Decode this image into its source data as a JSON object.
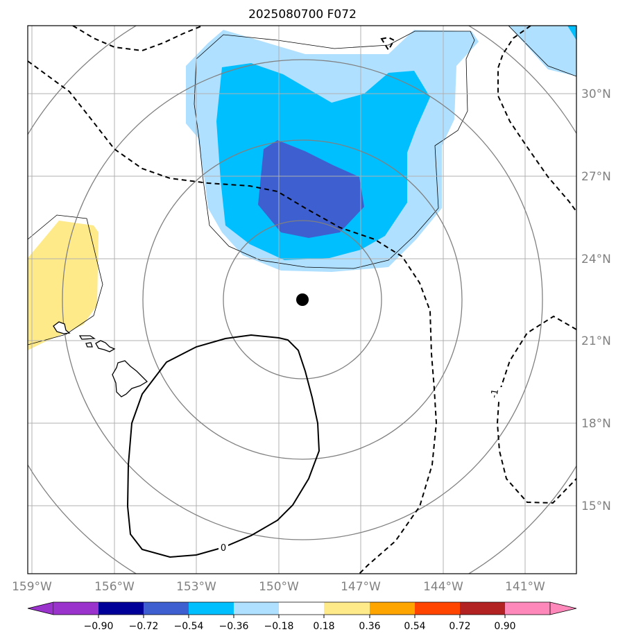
{
  "title": "2025080700 F072",
  "map": {
    "lon_ticks": [
      "159°W",
      "156°W",
      "153°W",
      "150°W",
      "147°W",
      "144°W",
      "141°W"
    ],
    "lat_ticks": [
      "30°N",
      "27°N",
      "24°N",
      "21°N",
      "18°N",
      "15°N"
    ],
    "contour_labels": [
      "0",
      "-1"
    ],
    "center_marker": "storm-center-dot"
  },
  "colorbar": {
    "labels": [
      "−0.90",
      "−0.72",
      "−0.54",
      "−0.36",
      "−0.18",
      "0.18",
      "0.36",
      "0.54",
      "0.72",
      "0.90"
    ],
    "colors": [
      "#9933cc",
      "#000099",
      "#3d5fcf",
      "#00bfff",
      "#b0e0ff",
      "#ffffff",
      "#ffea8a",
      "#ffa500",
      "#ff4500",
      "#b22222",
      "#ff88bb"
    ]
  },
  "colors": {
    "light_blue": "#b0e0ff",
    "blue": "#00bfff",
    "royal_blue": "#3d5fcf",
    "yellow": "#ffea8a",
    "grid": "#b0b0b0",
    "circles": "#808080"
  }
}
